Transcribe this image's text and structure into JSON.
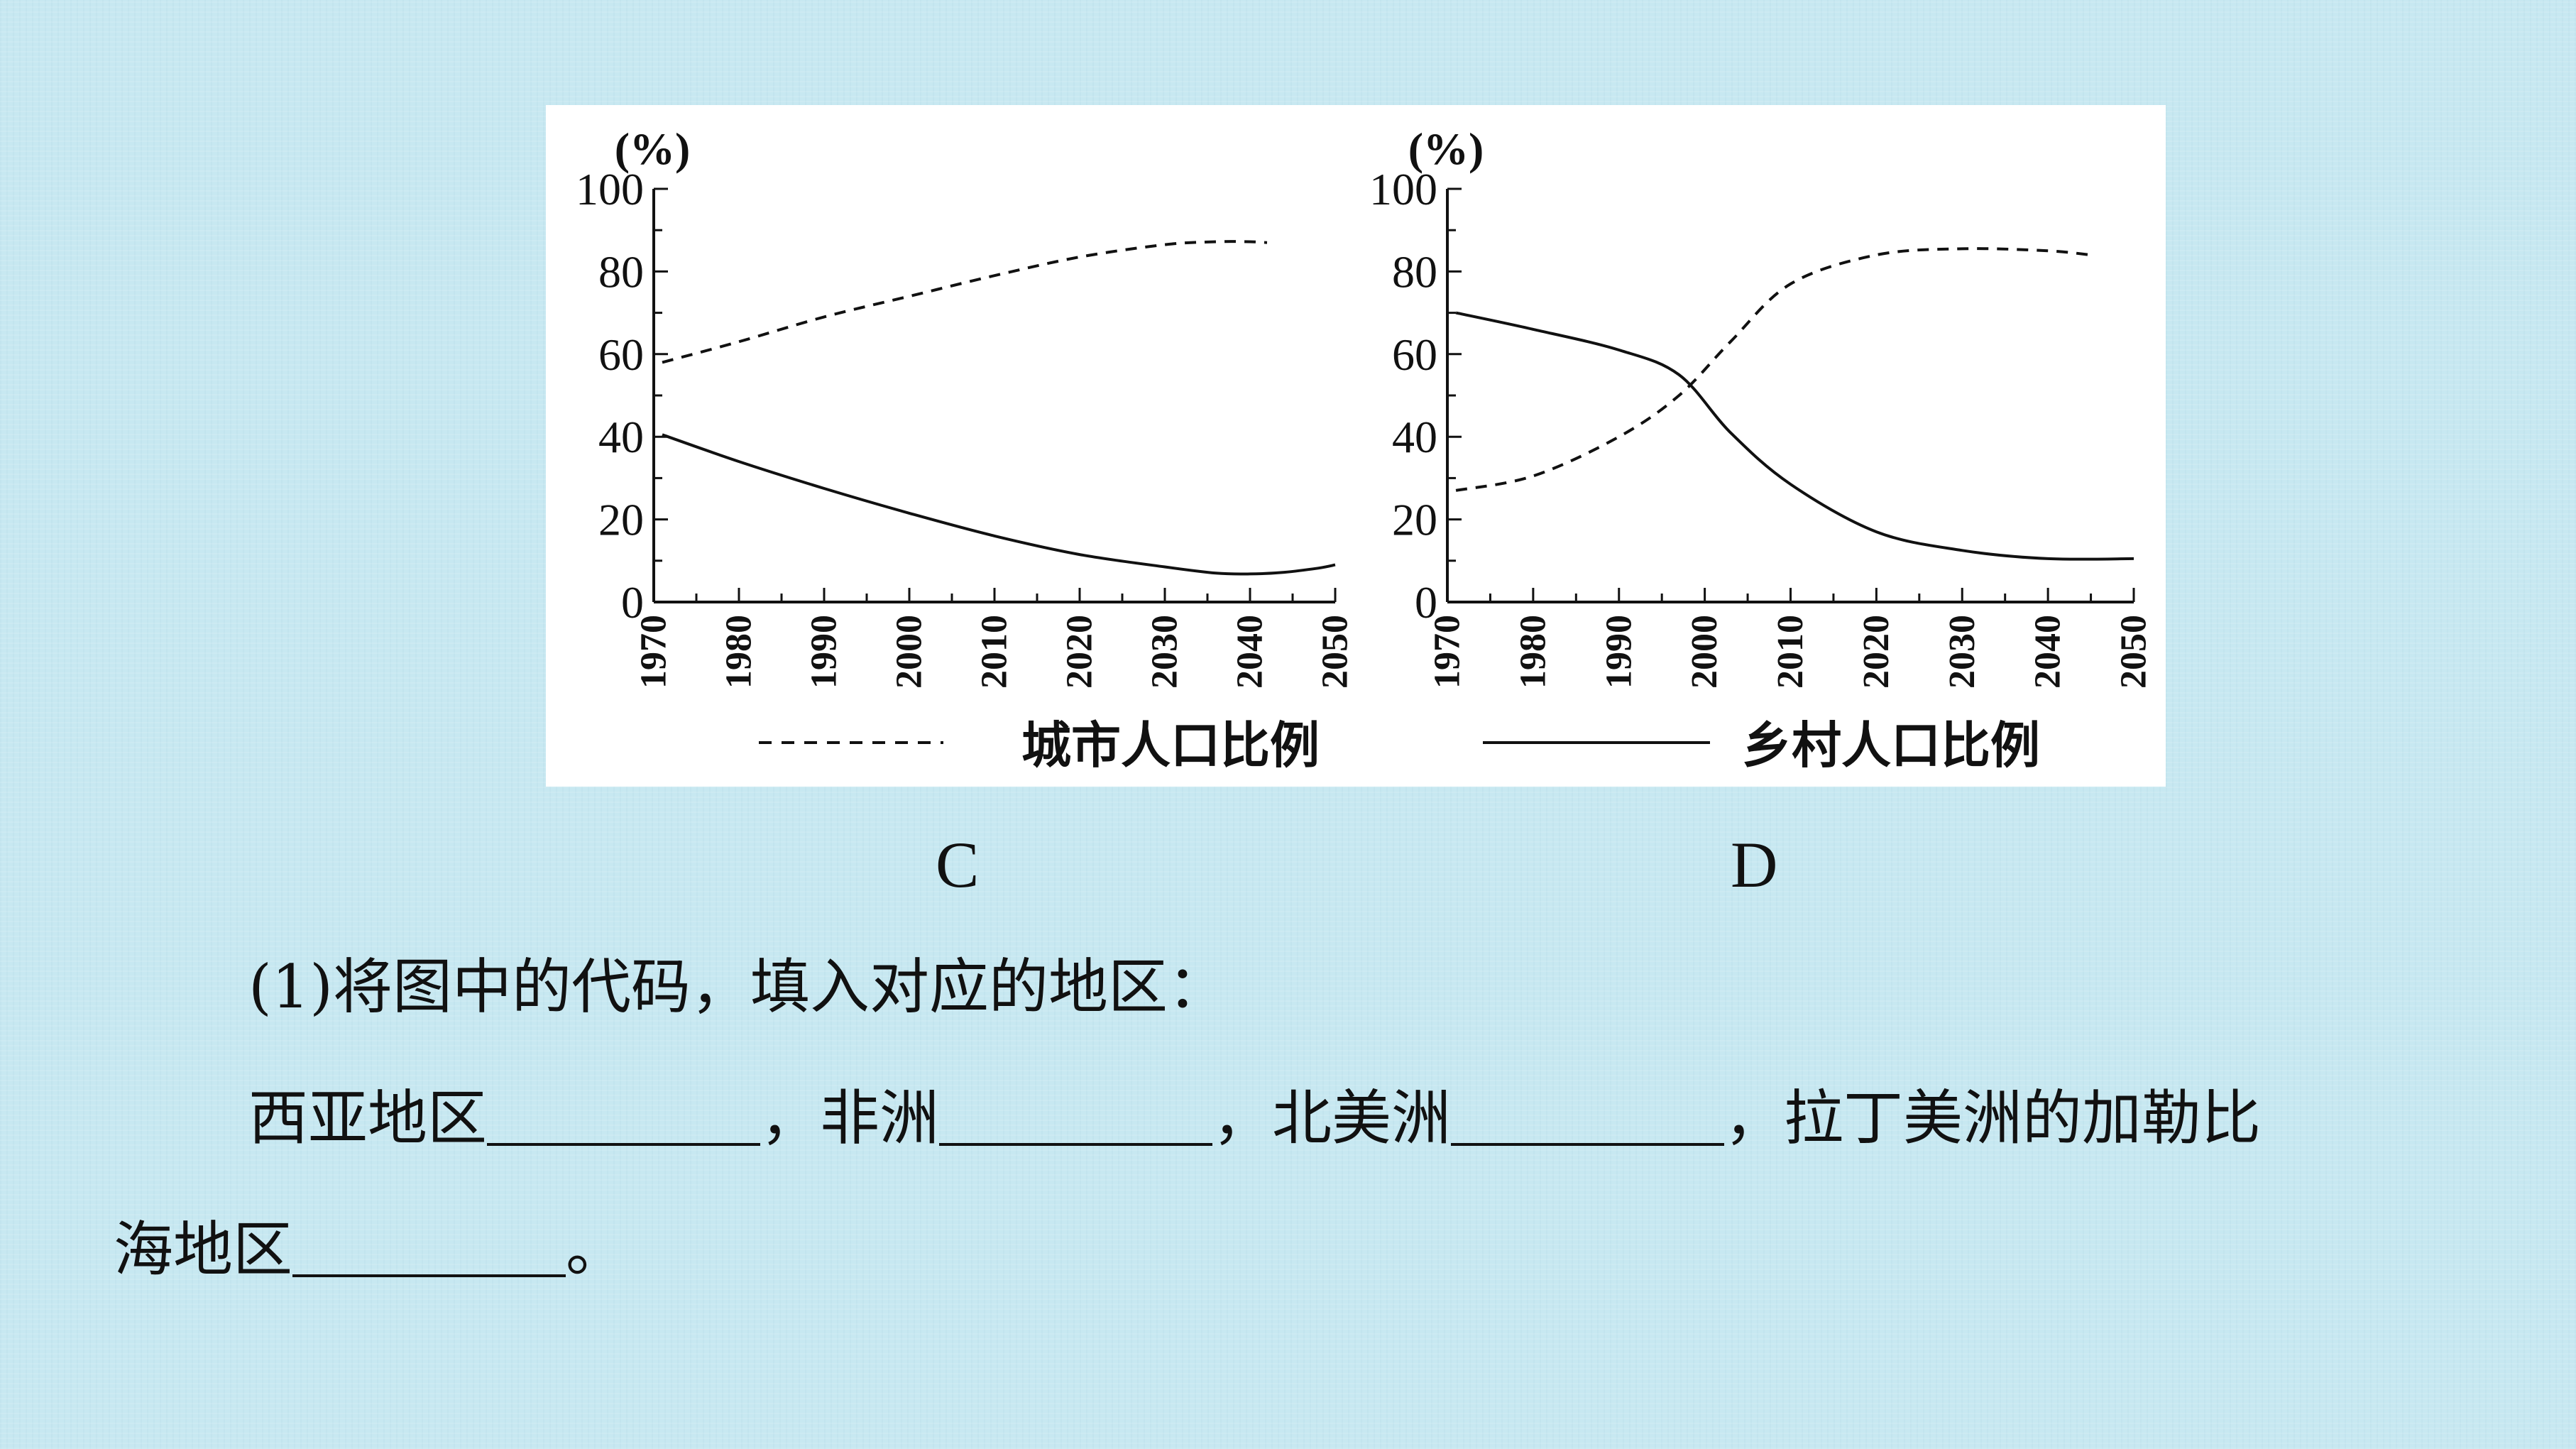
{
  "chart_data": [
    {
      "type": "line",
      "unit_label": "(%)",
      "ylim": [
        0,
        100
      ],
      "y_ticks": [
        0,
        20,
        40,
        60,
        80,
        100
      ],
      "xlim": [
        1970,
        2050
      ],
      "x_ticks": [
        1970,
        1980,
        1990,
        2000,
        2010,
        2020,
        2030,
        2040,
        2050
      ],
      "legend_label": "城市人口比例",
      "legend_style": "dashed",
      "series": [
        {
          "style": "dashed",
          "x": [
            1971,
            1980,
            1990,
            2000,
            2010,
            2020,
            2030,
            2036,
            2040,
            2042
          ],
          "values": [
            58,
            63,
            69,
            74,
            79,
            83.5,
            86.5,
            87.2,
            87.2,
            87
          ]
        },
        {
          "style": "solid",
          "x": [
            1971,
            1980,
            1990,
            2000,
            2010,
            2020,
            2030,
            2036,
            2040,
            2044,
            2048,
            2050
          ],
          "values": [
            40.5,
            34,
            27.5,
            21.5,
            16,
            11.5,
            8.5,
            7,
            6.8,
            7.2,
            8.2,
            9
          ]
        }
      ],
      "caption": "C"
    },
    {
      "type": "line",
      "unit_label": "(%)",
      "ylim": [
        0,
        100
      ],
      "y_ticks": [
        0,
        20,
        40,
        60,
        80,
        100
      ],
      "xlim": [
        1970,
        2050
      ],
      "x_ticks": [
        1970,
        1980,
        1990,
        2000,
        2010,
        2020,
        2030,
        2040,
        2050
      ],
      "legend_label": "乡村人口比例",
      "legend_style": "solid",
      "series": [
        {
          "style": "dashed",
          "x": [
            1971,
            1980,
            1990,
            1997,
            2003,
            2010,
            2020,
            2030,
            2040,
            2045
          ],
          "values": [
            27,
            30.5,
            40,
            50,
            63,
            77,
            84,
            85.5,
            85,
            84
          ]
        },
        {
          "style": "solid",
          "x": [
            1971,
            1980,
            1990,
            1997,
            2003,
            2010,
            2020,
            2030,
            2040,
            2050
          ],
          "values": [
            70,
            66,
            61,
            55,
            41,
            28.5,
            17,
            12.5,
            10.5,
            10.5
          ]
        }
      ],
      "caption": "D"
    }
  ],
  "question": {
    "line1": "(1)将图中的代码，填入对应的地区：",
    "line2_a": "西亚地区",
    "line2_b": "，非洲",
    "line2_c": "，北美洲",
    "line2_d": "，拉丁美洲的加勒比",
    "line3_a": "海地区",
    "line3_b": "。"
  }
}
